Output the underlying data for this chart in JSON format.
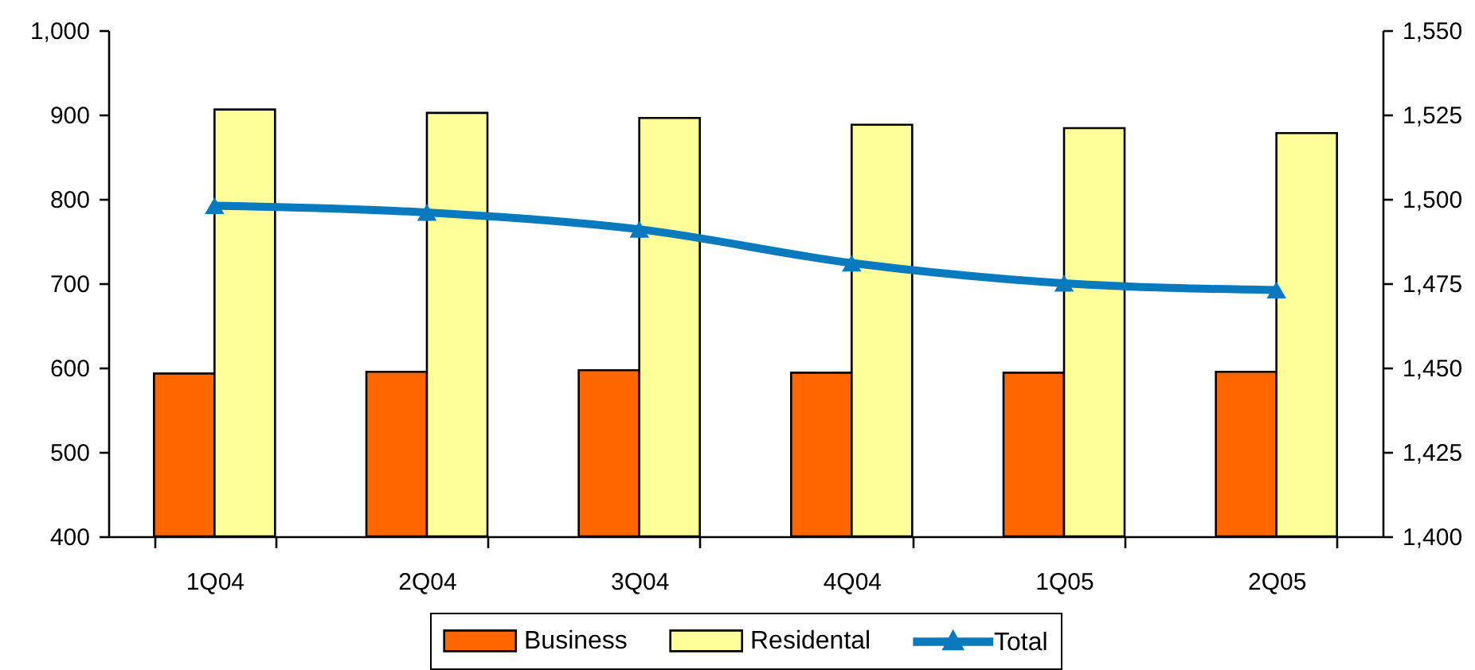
{
  "chart_data": {
    "type": "bar",
    "categories": [
      "1Q04",
      "2Q04",
      "3Q04",
      "4Q04",
      "1Q05",
      "2Q05"
    ],
    "series": [
      {
        "name": "Business",
        "color": "#ff6600",
        "values": [
          593,
          595,
          597,
          594,
          594,
          595
        ]
      },
      {
        "name": "Residental",
        "color": "#ffff99",
        "values": [
          906,
          902,
          896,
          888,
          884,
          878
        ]
      },
      {
        "name": "Total",
        "type": "line",
        "axis": "y2",
        "color": "#0a7abf",
        "values": [
          1498,
          1496,
          1491,
          1481,
          1475,
          1473
        ]
      }
    ],
    "ylim": [
      400,
      1000
    ],
    "yticks": [
      400,
      500,
      600,
      700,
      800,
      900,
      {
        "value": 1000,
        "label": "1,000"
      }
    ],
    "y2lim": [
      1400,
      1550
    ],
    "y2ticks": [
      {
        "value": 1400,
        "label": "1,400"
      },
      {
        "value": 1425,
        "label": "1,425"
      },
      {
        "value": 1450,
        "label": "1,450"
      },
      {
        "value": 1475,
        "label": "1,475"
      },
      {
        "value": 1500,
        "label": "1,500"
      },
      {
        "value": 1525,
        "label": "1,525"
      },
      {
        "value": 1550,
        "label": "1,550"
      }
    ],
    "legend": "bottom",
    "marker": "triangle"
  }
}
